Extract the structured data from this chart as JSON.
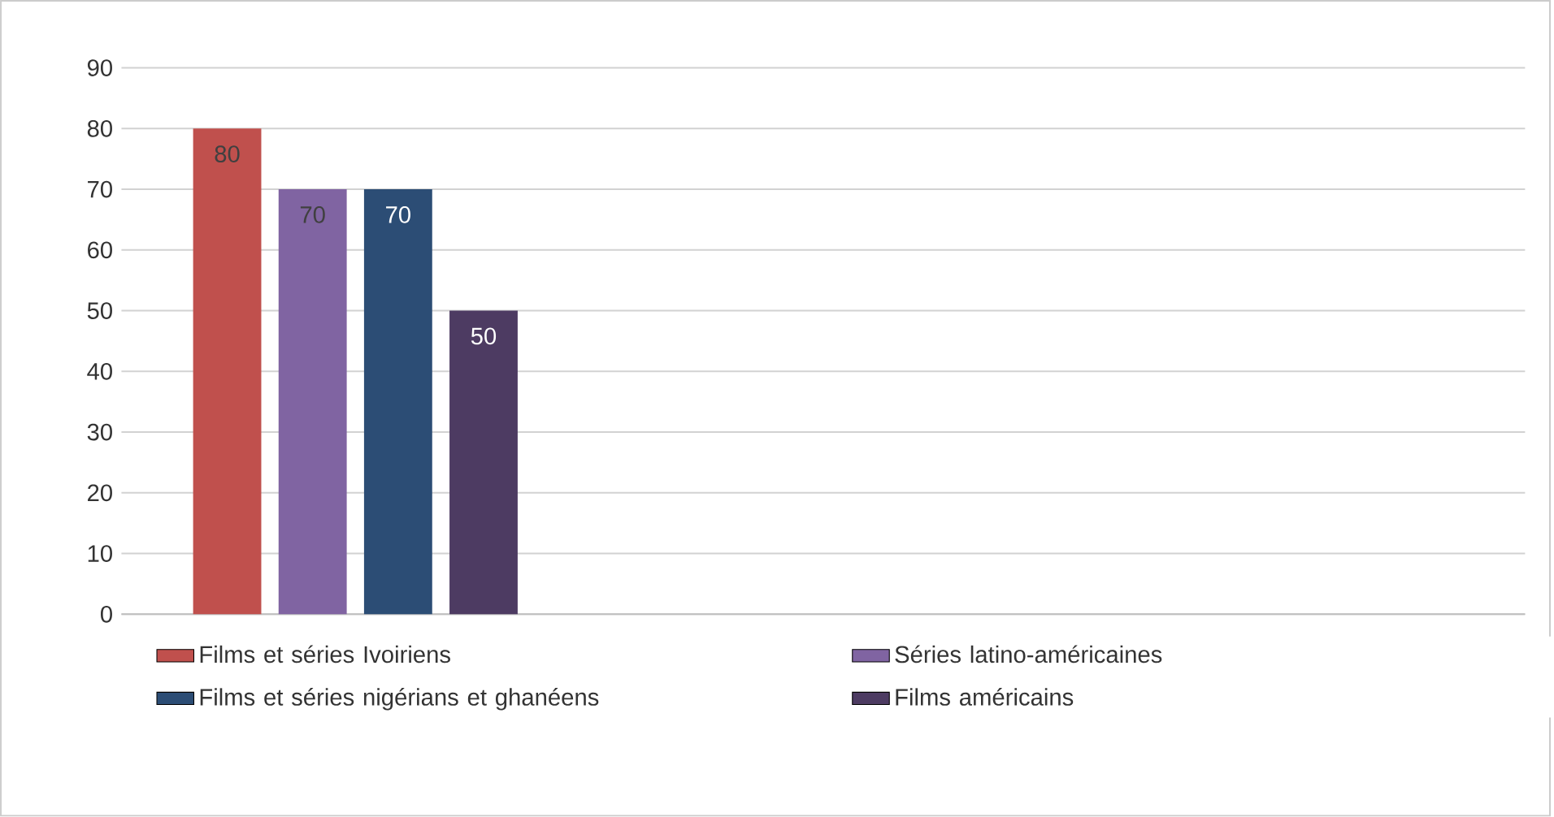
{
  "chart_data": {
    "type": "bar",
    "categories": [
      null,
      null,
      null
    ],
    "series": [
      {
        "name": "Films et séries Ivoiriens",
        "color": "#c0504d",
        "values": [
          80,
          null,
          null
        ]
      },
      {
        "name": "Séries latino-américaines",
        "color": "#8064a2",
        "values": [
          70,
          null,
          null
        ]
      },
      {
        "name": "Films et séries nigérians et ghanéens",
        "color": "#2c4d75",
        "values": [
          70,
          null,
          null
        ]
      },
      {
        "name": "Films américains",
        "color": "#4d3b62",
        "values": [
          50,
          null,
          null
        ]
      }
    ],
    "ylim": [
      0,
      90
    ],
    "yticks": [
      0,
      10,
      20,
      30,
      40,
      50,
      60,
      70,
      80,
      90
    ],
    "grid": "y",
    "legend": "bottom",
    "data_labels": true
  }
}
